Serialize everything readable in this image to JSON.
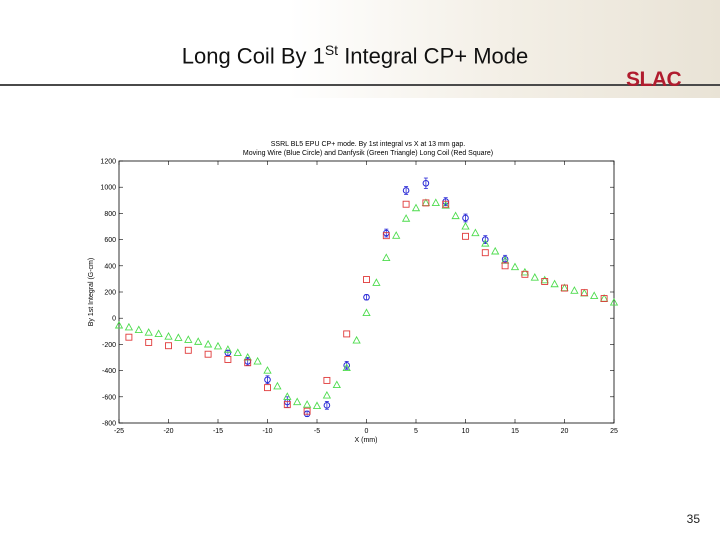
{
  "slide": {
    "title_prefix": "Long Coil By 1",
    "title_sup": "St",
    "title_suffix": " Integral CP+ Mode",
    "logo_text": "SLAC",
    "page_number": "35"
  },
  "colors": {
    "moving_wire": "#2a2ad6",
    "danfysik": "#4ddc4d",
    "long_coil": "#e03a3a",
    "logo": "#b01c2e"
  },
  "chart_data": {
    "type": "scatter",
    "title": "SSRL BL5 EPU CP+ mode.  By 1st integral vs X at 13 mm gap.",
    "subtitle": "Moving Wire (Blue Circle) and Danfysik (Green Triangle) Long Coil (Red Square)",
    "xlabel": "X (mm)",
    "ylabel": "By 1st Integral (G-cm)",
    "xlim": [
      -25,
      25
    ],
    "ylim": [
      -800,
      1200
    ],
    "x_ticks": [
      "-25",
      "-20",
      "-15",
      "-10",
      "-5",
      "0",
      "5",
      "10",
      "15",
      "20",
      "25"
    ],
    "y_ticks": [
      "-800",
      "-600",
      "-400",
      "-200",
      "0",
      "200",
      "400",
      "600",
      "800",
      "1000",
      "1200"
    ],
    "grid": false,
    "series": [
      {
        "marker": "circle",
        "color": "#2a2ad6",
        "x": [
          -14,
          -12,
          -10,
          -8,
          -6,
          -4,
          -2,
          0,
          2,
          4,
          6,
          8,
          10,
          12,
          14
        ],
        "y": [
          -265,
          -330,
          -470,
          -640,
          -730,
          -665,
          -360,
          160,
          650,
          975,
          1030,
          890,
          765,
          600,
          450
        ],
        "err": [
          20,
          30,
          30,
          40,
          20,
          30,
          30,
          20,
          30,
          30,
          40,
          30,
          30,
          30,
          30
        ]
      },
      {
        "marker": "triangle",
        "color": "#4ddc4d",
        "x": [
          -25,
          -24,
          -23,
          -22,
          -21,
          -20,
          -19,
          -18,
          -17,
          -16,
          -15,
          -14,
          -13,
          -12,
          -11,
          -10,
          -9,
          -8,
          -7,
          -6,
          -5,
          -4,
          -3,
          -2,
          -1,
          0,
          1,
          2,
          3,
          4,
          5,
          6,
          7,
          8,
          9,
          10,
          11,
          12,
          13,
          14,
          15,
          16,
          17,
          18,
          19,
          20,
          21,
          22,
          23,
          24,
          25
        ],
        "y": [
          -55,
          -70,
          -90,
          -110,
          -120,
          -140,
          -150,
          -165,
          -180,
          -200,
          -215,
          -240,
          -265,
          -300,
          -330,
          -400,
          -520,
          -600,
          -640,
          -660,
          -670,
          -590,
          -510,
          -380,
          -170,
          40,
          270,
          460,
          630,
          760,
          840,
          880,
          880,
          860,
          780,
          700,
          650,
          570,
          510,
          440,
          390,
          350,
          310,
          290,
          260,
          230,
          210,
          190,
          170,
          150,
          120
        ]
      },
      {
        "marker": "square",
        "color": "#e03a3a",
        "x": [
          -24,
          -22,
          -20,
          -18,
          -16,
          -14,
          -12,
          -10,
          -8,
          -6,
          -4,
          -2,
          0,
          2,
          4,
          6,
          8,
          10,
          12,
          14,
          16,
          18,
          20,
          22,
          24
        ],
        "y": [
          -145,
          -185,
          -210,
          -245,
          -275,
          -315,
          -340,
          -530,
          -660,
          -710,
          -475,
          -120,
          295,
          630,
          870,
          880,
          870,
          625,
          500,
          400,
          335,
          280,
          230,
          195,
          150
        ]
      }
    ]
  }
}
